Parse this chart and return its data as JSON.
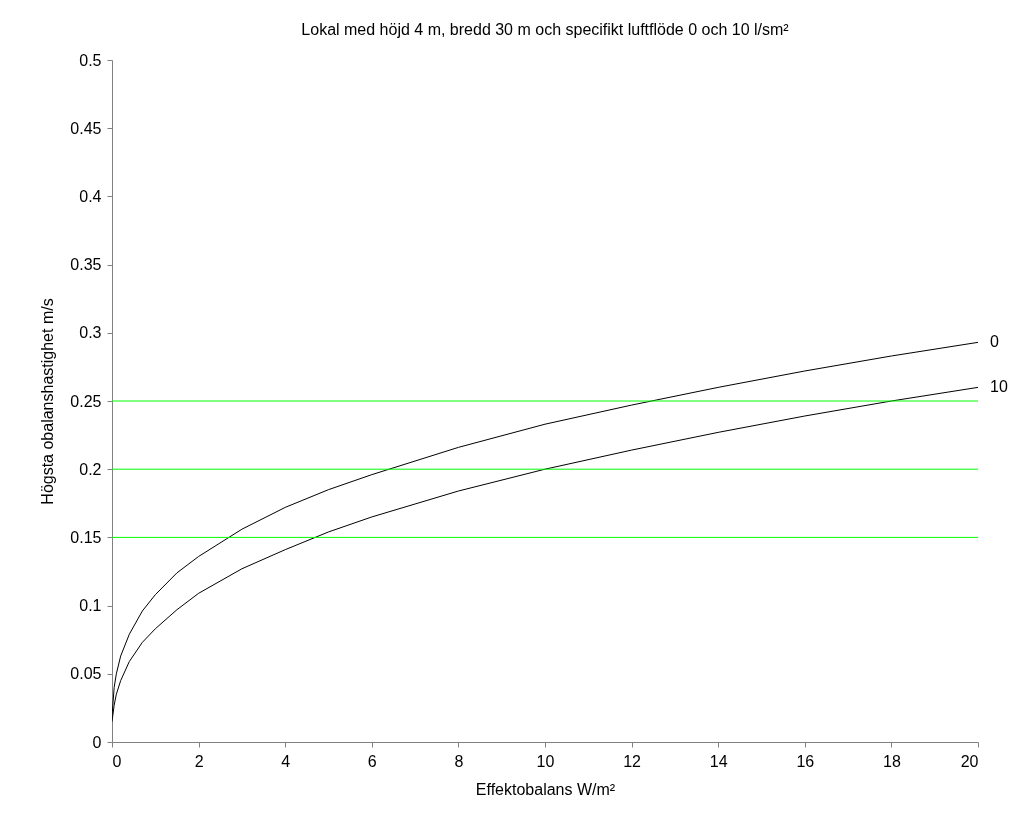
{
  "chart_data": {
    "type": "line",
    "title": "Lokal med höjd 4 m, bredd 30 m och specifikt luftflöde 0 och 10 l/sm²",
    "xlabel": "Effektobalans  W/m²",
    "ylabel": "Högsta obalanshastighet  m/s",
    "x": [
      0,
      0.05,
      0.1,
      0.2,
      0.4,
      0.7,
      1,
      1.5,
      2,
      3,
      4,
      5,
      6,
      8,
      10,
      12,
      14,
      16,
      18,
      20
    ],
    "series": [
      {
        "name": "0",
        "color": "#000000",
        "values": [
          0.019,
          0.04,
          0.05,
          0.063,
          0.079,
          0.096,
          0.108,
          0.124,
          0.136,
          0.156,
          0.172,
          0.185,
          0.196,
          0.216,
          0.233,
          0.247,
          0.26,
          0.272,
          0.283,
          0.293
        ]
      },
      {
        "name": "10",
        "color": "#000000",
        "values": [
          0.015,
          0.027,
          0.035,
          0.045,
          0.059,
          0.073,
          0.083,
          0.097,
          0.109,
          0.127,
          0.141,
          0.154,
          0.165,
          0.184,
          0.2,
          0.214,
          0.227,
          0.239,
          0.25,
          0.26
        ]
      }
    ],
    "ref_lines": [
      {
        "axis": "y",
        "value": 0.15,
        "color": "#00ff00"
      },
      {
        "axis": "y",
        "value": 0.2,
        "color": "#00ff00"
      },
      {
        "axis": "y",
        "value": 0.25,
        "color": "#00ff00"
      }
    ],
    "xlim": [
      0,
      20
    ],
    "xticks": [
      0,
      2,
      4,
      6,
      8,
      10,
      12,
      14,
      16,
      18,
      20
    ],
    "ylim": [
      0,
      0.5
    ],
    "yticks": [
      0,
      0.05,
      0.1,
      0.15,
      0.2,
      0.25,
      0.3,
      0.35,
      0.4,
      0.45,
      0.5
    ],
    "grid": false,
    "legend": false,
    "marker": "none",
    "line_style": "solid"
  }
}
